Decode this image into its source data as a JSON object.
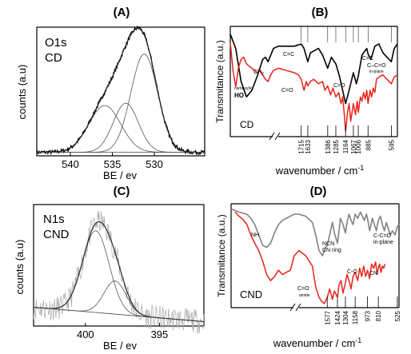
{
  "chart_data": [
    {
      "panel": "(A)",
      "type": "line",
      "title": "",
      "label_lines": [
        "O1s",
        "CD"
      ],
      "xlabel": "BE / ev",
      "ylabel": "counts (a.u)",
      "x_reversed": true,
      "xlim": [
        544,
        524
      ],
      "xticks": [
        540,
        535,
        530
      ],
      "ylim": [
        0,
        1.1
      ],
      "peaks": [
        {
          "center": 531.2,
          "height": 0.84,
          "width": 1.6
        },
        {
          "center": 535.9,
          "height": 0.4,
          "width": 1.9
        },
        {
          "center": 533.4,
          "height": 0.42,
          "width": 1.5
        }
      ],
      "baseline": 0.03
    },
    {
      "panel": "(B)",
      "type": "line",
      "title": "",
      "label": "CD",
      "xlabel": "wavenumber / cm",
      "xlabel_superscript": "-1",
      "ylabel": "Transmitance (a.u.)",
      "x_reversed": true,
      "xticks": [
        "1715",
        "1633",
        "1386",
        "1285",
        "1164",
        "1067",
        "1006",
        "885",
        "595"
      ],
      "band_labels": [
        {
          "text": "carboxylic",
          "small": true
        },
        {
          "text": "HO",
          "bold": true
        },
        {
          "text": "CH",
          "sub": "2"
        },
        {
          "text": "C=C"
        },
        {
          "text": "C=O"
        },
        {
          "text": "C=O"
        },
        {
          "text": "C=C"
        },
        {
          "text": "C–C=O"
        },
        {
          "text": "in-plane",
          "small": true
        }
      ],
      "series": [
        {
          "name": "",
          "color": "#000000",
          "x": [
            3600,
            3500,
            3400,
            3300,
            3200,
            3100,
            3000,
            2950,
            2900,
            2850,
            2800,
            2000,
            1900,
            1800,
            1715,
            1680,
            1633,
            1600,
            1500,
            1450,
            1386,
            1340,
            1285,
            1240,
            1200,
            1164,
            1120,
            1067,
            1030,
            1006,
            960,
            900,
            885,
            850,
            800,
            750,
            700,
            650,
            595,
            560,
            520
          ],
          "y": [
            0.93,
            0.8,
            0.5,
            0.36,
            0.42,
            0.55,
            0.7,
            0.72,
            0.68,
            0.74,
            0.8,
            0.82,
            0.82,
            0.82,
            0.84,
            0.8,
            0.68,
            0.76,
            0.8,
            0.74,
            0.62,
            0.72,
            0.66,
            0.55,
            0.42,
            0.3,
            0.42,
            0.58,
            0.48,
            0.55,
            0.74,
            0.8,
            0.75,
            0.7,
            0.82,
            0.84,
            0.76,
            0.72,
            0.68,
            0.8,
            0.84
          ]
        },
        {
          "name": "",
          "color": "#e8231c",
          "x": [
            3600,
            3550,
            3500,
            3450,
            3400,
            3350,
            3300,
            3250,
            3200,
            3150,
            3100,
            3050,
            3000,
            2950,
            2900,
            2850,
            2800,
            2000,
            1900,
            1800,
            1750,
            1715,
            1680,
            1650,
            1633,
            1600,
            1560,
            1500,
            1450,
            1420,
            1386,
            1350,
            1320,
            1285,
            1250,
            1220,
            1200,
            1180,
            1164,
            1140,
            1120,
            1100,
            1067,
            1040,
            1020,
            1006,
            980,
            960,
            940,
            920,
            900,
            885,
            860,
            840,
            820,
            800,
            780,
            750,
            700,
            650,
            595,
            560,
            520
          ],
          "y": [
            0.85,
            0.6,
            0.45,
            0.62,
            0.7,
            0.72,
            0.66,
            0.64,
            0.62,
            0.6,
            0.58,
            0.6,
            0.56,
            0.52,
            0.5,
            0.56,
            0.6,
            0.62,
            0.6,
            0.58,
            0.56,
            0.52,
            0.42,
            0.5,
            0.46,
            0.5,
            0.52,
            0.48,
            0.5,
            0.42,
            0.46,
            0.38,
            0.44,
            0.36,
            0.4,
            0.3,
            0.36,
            0.2,
            0.05,
            0.22,
            0.3,
            0.14,
            0.3,
            0.2,
            0.32,
            0.22,
            0.36,
            0.32,
            0.4,
            0.34,
            0.42,
            0.3,
            0.42,
            0.36,
            0.44,
            0.4,
            0.52,
            0.54,
            0.56,
            0.52,
            0.48,
            0.54,
            0.56
          ]
        }
      ]
    },
    {
      "panel": "(C)",
      "type": "line",
      "title": "",
      "label_lines": [
        "N1s",
        "CND"
      ],
      "xlabel": "BE / ev",
      "ylabel": "counts (a.u)",
      "x_reversed": true,
      "xlim": [
        403.5,
        392
      ],
      "xticks": [
        400,
        395
      ],
      "ylim": [
        0,
        1.1
      ],
      "peaks": [
        {
          "center": 399.3,
          "height": 0.74,
          "width": 0.9
        },
        {
          "center": 398.0,
          "height": 0.3,
          "width": 0.75
        }
      ],
      "baseline_start": 0.17,
      "baseline_end": 0.04
    },
    {
      "panel": "(D)",
      "type": "line",
      "title": "",
      "label": "CND",
      "xlabel": "wavenumber / cm",
      "xlabel_superscript": "-1",
      "ylabel": "Transmitance (a.u.)",
      "x_reversed": true,
      "xticks": [
        "1577",
        "1424",
        "1304",
        "1158",
        "973",
        "810",
        "525"
      ],
      "band_labels": [
        {
          "text": "NH"
        },
        {
          "text": "NCN"
        },
        {
          "text": "CN ring"
        },
        {
          "text": "C-C=O"
        },
        {
          "text": "in-plane"
        },
        {
          "text": "C=O"
        },
        {
          "text": "amide",
          "small": true
        },
        {
          "text": "C-O"
        },
        {
          "text": "CN"
        }
      ],
      "series": [
        {
          "name": "",
          "color": "#808080",
          "x": [
            3700,
            3600,
            3500,
            3450,
            3400,
            3350,
            3300,
            3250,
            3200,
            3150,
            3100,
            3050,
            3000,
            2950,
            2900,
            2000,
            1900,
            1800,
            1750,
            1700,
            1650,
            1600,
            1577,
            1540,
            1500,
            1470,
            1424,
            1400,
            1380,
            1340,
            1304,
            1280,
            1250,
            1220,
            1190,
            1158,
            1120,
            1080,
            1050,
            1020,
            990,
            973,
            940,
            900,
            870,
            840,
            810,
            780,
            750,
            720,
            690,
            660,
            630,
            600,
            560,
            525,
            500
          ],
          "y": [
            0.95,
            0.92,
            0.9,
            0.86,
            0.8,
            0.7,
            0.6,
            0.58,
            0.62,
            0.72,
            0.8,
            0.84,
            0.86,
            0.88,
            0.9,
            0.9,
            0.88,
            0.82,
            0.7,
            0.55,
            0.5,
            0.58,
            0.6,
            0.7,
            0.82,
            0.72,
            0.62,
            0.74,
            0.86,
            0.8,
            0.72,
            0.82,
            0.9,
            0.84,
            0.8,
            0.9,
            0.86,
            0.92,
            0.88,
            0.84,
            0.9,
            0.86,
            0.74,
            0.86,
            0.8,
            0.74,
            0.84,
            0.88,
            0.8,
            0.74,
            0.82,
            0.76,
            0.7,
            0.74,
            0.7,
            0.78,
            0.8
          ]
        },
        {
          "name": "",
          "color": "#e8231c",
          "x": [
            3650,
            3600,
            3550,
            3500,
            3450,
            3400,
            3350,
            3300,
            3250,
            3200,
            3150,
            3100,
            3050,
            3000,
            2950,
            2900,
            2000,
            1900,
            1800,
            1750,
            1700,
            1660,
            1620,
            1577,
            1540,
            1500,
            1470,
            1424,
            1400,
            1370,
            1340,
            1304,
            1280,
            1250,
            1220,
            1190,
            1158,
            1120,
            1090,
            1060,
            1030,
            1000,
            973,
            940,
            910,
            880,
            850,
            830,
            810,
            790,
            770,
            750,
            730,
            710
          ],
          "y": [
            0.92,
            0.88,
            0.85,
            0.8,
            0.7,
            0.62,
            0.55,
            0.45,
            0.32,
            0.26,
            0.3,
            0.36,
            0.32,
            0.34,
            0.36,
            0.5,
            0.55,
            0.5,
            0.4,
            0.2,
            0.1,
            0.06,
            0.04,
            0.1,
            0.18,
            0.08,
            0.16,
            0.1,
            0.22,
            0.26,
            0.14,
            0.24,
            0.32,
            0.26,
            0.18,
            0.3,
            0.34,
            0.26,
            0.38,
            0.3,
            0.4,
            0.3,
            0.36,
            0.28,
            0.42,
            0.38,
            0.44,
            0.32,
            0.38,
            0.42,
            0.34,
            0.4,
            0.38,
            0.42
          ]
        }
      ]
    }
  ]
}
